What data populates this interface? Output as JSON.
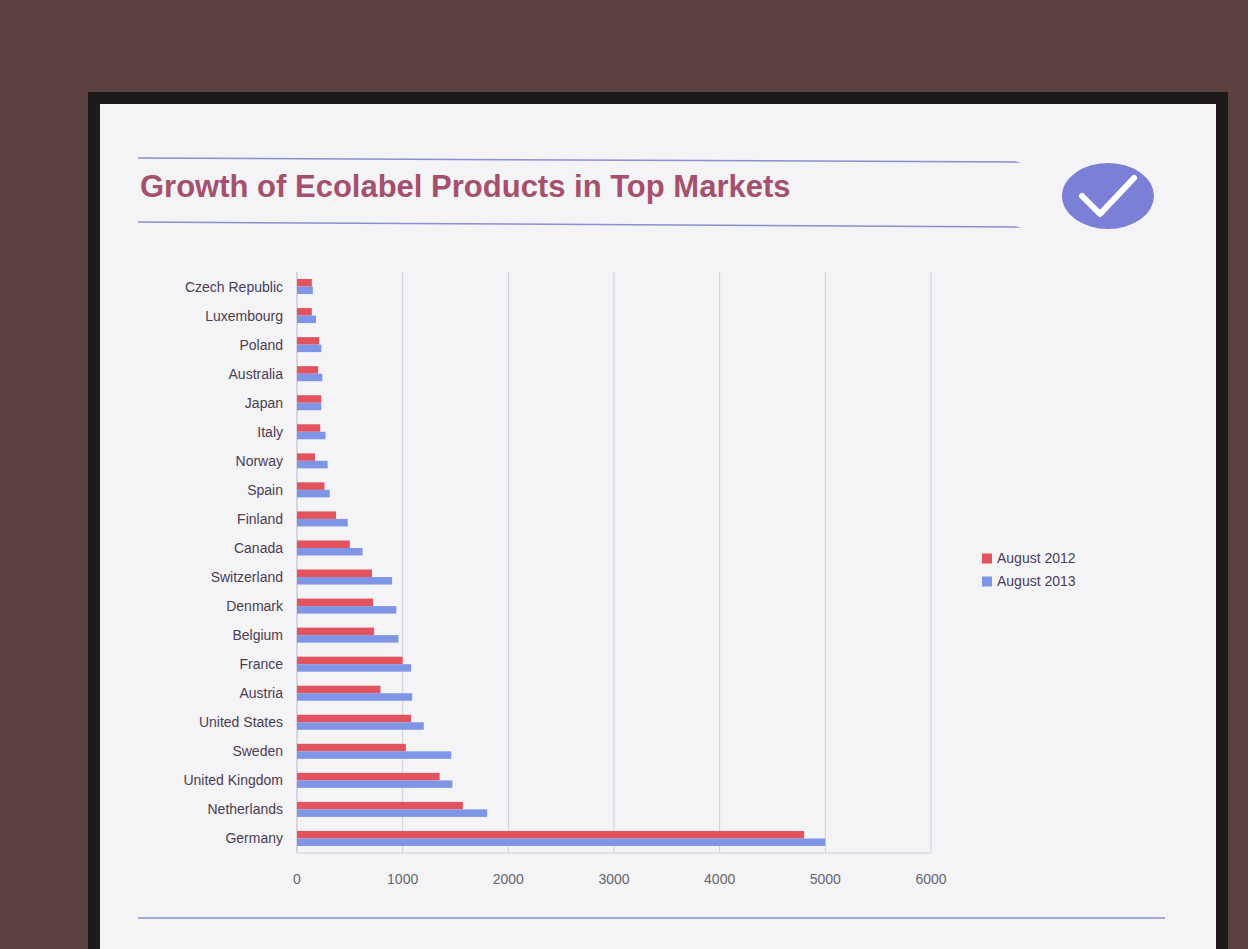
{
  "chart_data": {
    "type": "bar",
    "orientation": "horizontal",
    "title": "Growth of Ecolabel Products in Top Markets",
    "categories": [
      "Czech Republic",
      "Luxembourg",
      "Poland",
      "Australia",
      "Japan",
      "Italy",
      "Norway",
      "Spain",
      "Finland",
      "Canada",
      "Switzerland",
      "Denmark",
      "Belgium",
      "France",
      "Austria",
      "United States",
      "Sweden",
      "United Kingdom",
      "Netherlands",
      "Germany"
    ],
    "series": [
      {
        "name": "August 2012",
        "color": "#e2535d",
        "values": [
          140,
          140,
          210,
          200,
          230,
          220,
          170,
          260,
          370,
          500,
          710,
          720,
          730,
          1000,
          790,
          1080,
          1030,
          1350,
          1570,
          4800
        ]
      },
      {
        "name": "August 2013",
        "color": "#7f95e6",
        "values": [
          150,
          180,
          230,
          240,
          230,
          270,
          290,
          310,
          480,
          620,
          900,
          940,
          960,
          1080,
          1090,
          1200,
          1460,
          1470,
          1800,
          5000
        ]
      }
    ],
    "xlim": [
      0,
      6000
    ],
    "xticks": [
      0,
      1000,
      2000,
      3000,
      4000,
      5000,
      6000
    ],
    "grid": true,
    "legend": "right"
  }
}
